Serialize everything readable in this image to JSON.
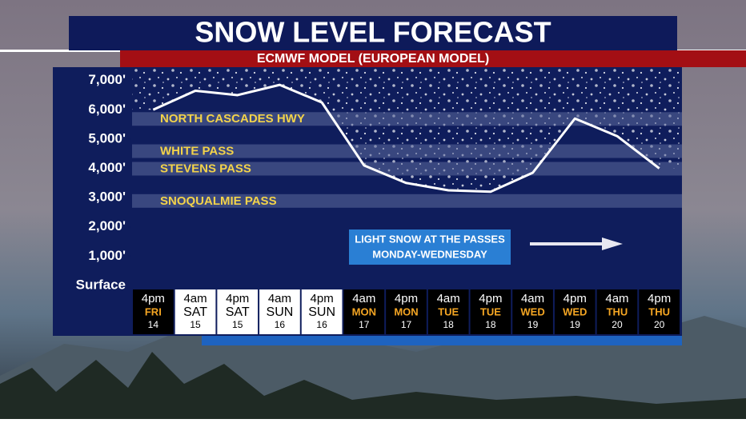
{
  "chart_data": {
    "type": "line",
    "title": "SNOW LEVEL FORECAST",
    "subtitle": "ECMWF MODEL (EUROPEAN MODEL)",
    "categories": [
      [
        "4pm",
        "FRI",
        "14"
      ],
      [
        "4am",
        "SAT",
        "15"
      ],
      [
        "4pm",
        "SAT",
        "15"
      ],
      [
        "4am",
        "SUN",
        "16"
      ],
      [
        "4pm",
        "SUN",
        "16"
      ],
      [
        "4am",
        "MON",
        "17"
      ],
      [
        "4pm",
        "MON",
        "17"
      ],
      [
        "4am",
        "TUE",
        "18"
      ],
      [
        "4pm",
        "TUE",
        "18"
      ],
      [
        "4am",
        "WED",
        "19"
      ],
      [
        "4pm",
        "WED",
        "19"
      ],
      [
        "4am",
        "THU",
        "20"
      ],
      [
        "4pm",
        "THU",
        "20"
      ]
    ],
    "values": [
      6000,
      6650,
      6500,
      6850,
      6250,
      4100,
      3500,
      3250,
      3200,
      3850,
      5700,
      5100,
      4000
    ],
    "color": "#ffffff",
    "ylim": [
      0,
      7400
    ],
    "yticks": [
      {
        "value": 0,
        "label": "Surface"
      },
      {
        "value": 1000,
        "label": "1,000'"
      },
      {
        "value": 2000,
        "label": "2,000'"
      },
      {
        "value": 3000,
        "label": "3,000'"
      },
      {
        "value": 4000,
        "label": "4,000'"
      },
      {
        "value": 5000,
        "label": "5,000'"
      },
      {
        "value": 6000,
        "label": "6,000'"
      },
      {
        "value": 7000,
        "label": "7,000'"
      }
    ],
    "bands": [
      {
        "label": "NORTH CASCADES HWY",
        "value": 5700
      },
      {
        "label": "WHITE PASS",
        "value": 4600
      },
      {
        "label": "STEVENS PASS",
        "value": 4000
      },
      {
        "label": "SNOQUALMIE PASS",
        "value": 2900
      }
    ],
    "annotation": [
      "LIGHT SNOW AT THE PASSES",
      "MONDAY-WEDNESDAY"
    ]
  }
}
